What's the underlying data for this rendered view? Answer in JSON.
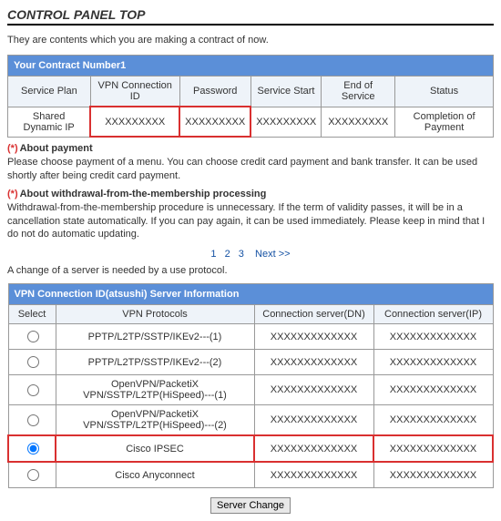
{
  "page_title": "CONTROL PANEL TOP",
  "intro": "They are contents which you are making a contract of now.",
  "contract": {
    "title": "Your Contract Number1",
    "headers": [
      "Service Plan",
      "VPN Connection ID",
      "Password",
      "Service Start",
      "End of Service",
      "Status"
    ],
    "row": {
      "plan": "Shared Dynamic IP",
      "vpnid": "XXXXXXXXX",
      "password": "XXXXXXXXX",
      "start": "XXXXXXXXX",
      "end": "XXXXXXXXX",
      "status": "Completion of Payment"
    },
    "highlight_cols": [
      1,
      2
    ]
  },
  "notes": {
    "payment_head": "About payment",
    "payment_body": "Please choose payment of a menu. You can choose credit card payment and bank transfer. It can be used shortly after being credit card payment.",
    "withdraw_head": "About withdrawal-from-the-membership processing",
    "withdraw_body": "Withdrawal-from-the-membership procedure is unnecessary. If the term of validity passes, it will be in a cancellation state automatically. If you can pay again, it can be used immediately. Please keep in mind that I do not do automatic updating."
  },
  "pager": {
    "pages": [
      "1",
      "2",
      "3"
    ],
    "next": "Next >>"
  },
  "change_note": "A change of a server is needed by a use protocol.",
  "server": {
    "title": "VPN Connection ID(atsushi) Server Information",
    "headers": [
      "Select",
      "VPN Protocols",
      "Connection server(DN)",
      "Connection server(IP)"
    ],
    "rows": [
      {
        "proto": "PPTP/L2TP/SSTP/IKEv2---(1)",
        "dn": "XXXXXXXXXXXXX",
        "ip": "XXXXXXXXXXXXX",
        "sel": false,
        "hl": false
      },
      {
        "proto": "PPTP/L2TP/SSTP/IKEv2---(2)",
        "dn": "XXXXXXXXXXXXX",
        "ip": "XXXXXXXXXXXXX",
        "sel": false,
        "hl": false
      },
      {
        "proto": "OpenVPN/PacketiX VPN/SSTP/L2TP(HiSpeed)---(1)",
        "dn": "XXXXXXXXXXXXX",
        "ip": "XXXXXXXXXXXXX",
        "sel": false,
        "hl": false
      },
      {
        "proto": "OpenVPN/PacketiX VPN/SSTP/L2TP(HiSpeed)---(2)",
        "dn": "XXXXXXXXXXXXX",
        "ip": "XXXXXXXXXXXXX",
        "sel": false,
        "hl": false
      },
      {
        "proto": "Cisco IPSEC",
        "dn": "XXXXXXXXXXXXX",
        "ip": "XXXXXXXXXXXXX",
        "sel": true,
        "hl": true
      },
      {
        "proto": "Cisco Anyconnect",
        "dn": "XXXXXXXXXXXXX",
        "ip": "XXXXXXXXXXXXX",
        "sel": false,
        "hl": false
      }
    ]
  },
  "button": "Server Change",
  "colors": {
    "header_bg": "#5b8fd8",
    "subheader_bg": "#eef3f9",
    "highlight_border": "#d93030",
    "link": "#1451a3"
  }
}
